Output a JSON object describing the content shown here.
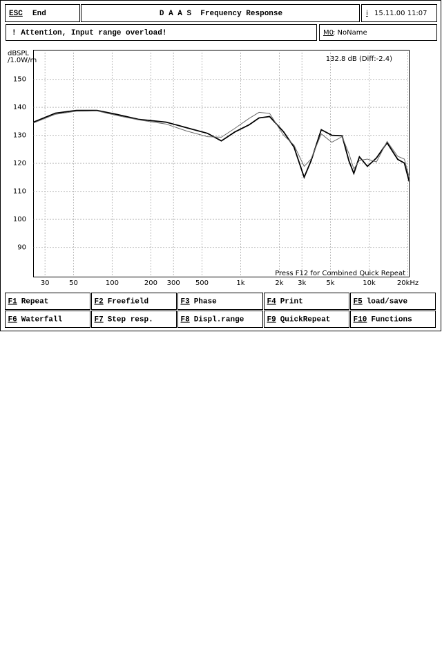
{
  "header": {
    "esc_key": "ESC",
    "esc_label": "End",
    "title": "D A A S  Frequency Response",
    "info_key": "i",
    "datetime": "15.11.00 11:07"
  },
  "status": {
    "message": "! Attention, Input range overload!",
    "memory_key": "M0",
    "memory_label": ": NoName"
  },
  "chart_data": {
    "type": "line",
    "ylabel": [
      "dBSPL",
      "/1.0W/m"
    ],
    "annotations": [
      "132.8 dB (Diff:-2.4)",
      "Press F12 for Combined Quick Repeat"
    ],
    "x": [
      24.4,
      36.2,
      52.6,
      76.2,
      110,
      160,
      263,
      381,
      552,
      707,
      902,
      1160,
      1390,
      1680,
      2160,
      2600,
      3120,
      3530,
      4240,
      5120,
      6160,
      6960,
      7600,
      8400,
      9700,
      11400,
      13800,
      16700,
      18800,
      20500
    ],
    "series": [
      {
        "color": "#000000",
        "values": [
          134.7,
          137.9,
          138.9,
          138.9,
          137.4,
          135.7,
          134.7,
          132.7,
          130.7,
          128.0,
          131.2,
          133.7,
          136.2,
          136.7,
          131.2,
          125.8,
          115.0,
          120.9,
          132.0,
          130.0,
          129.8,
          120.9,
          116.4,
          122.3,
          118.9,
          121.9,
          127.3,
          121.4,
          120.1,
          113.5
        ]
      },
      {
        "color": "#6a6a6a",
        "values": [
          134.4,
          137.5,
          138.6,
          138.7,
          137.0,
          135.5,
          134.0,
          131.5,
          129.5,
          129.3,
          132.5,
          136.0,
          138.2,
          137.8,
          130.0,
          126.5,
          118.9,
          121.5,
          130.5,
          127.5,
          129.5,
          123.5,
          118.0,
          121.0,
          121.5,
          120.5,
          127.8,
          122.5,
          121.5,
          115.0
        ]
      }
    ],
    "xscale": "log",
    "xlim": [
      24.4,
      20500
    ],
    "ylim": [
      79.4,
      160.4
    ],
    "xticks": [
      30,
      50,
      100,
      200,
      300,
      500,
      {
        "value": 1000,
        "label": "1k"
      },
      {
        "value": 2000,
        "label": "2k"
      },
      {
        "value": 3000,
        "label": "3k"
      },
      {
        "value": 5000,
        "label": "5k"
      },
      {
        "value": 10000,
        "label": "10k"
      },
      {
        "value": 20000,
        "label": "20kHz"
      }
    ],
    "yticks": [
      90,
      100,
      110,
      120,
      130,
      140,
      150
    ],
    "grid": true
  },
  "function_keys": [
    {
      "key": "F1",
      "label": "Repeat"
    },
    {
      "key": "F2",
      "label": "Freefield"
    },
    {
      "key": "F3",
      "label": "Phase"
    },
    {
      "key": "F4",
      "label": "Print"
    },
    {
      "key": "F5",
      "label": "load/save"
    },
    {
      "key": "F6",
      "label": "Waterfall"
    },
    {
      "key": "F7",
      "label": "Step resp."
    },
    {
      "key": "F8",
      "label": "Displ.range"
    },
    {
      "key": "F9",
      "label": "QuickRepeat"
    },
    {
      "key": "F10",
      "label": "Functions"
    }
  ]
}
